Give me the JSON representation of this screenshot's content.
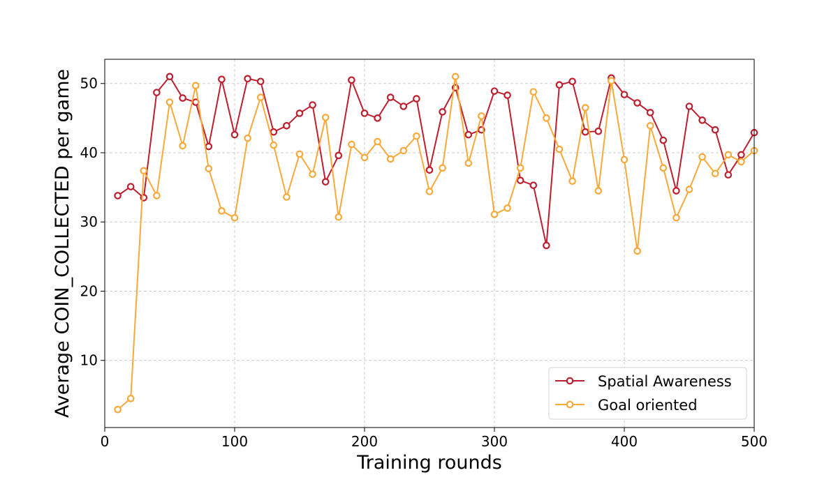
{
  "chart_data": {
    "type": "line",
    "title": "",
    "xlabel": "Training rounds",
    "ylabel": "Average COIN_COLLECTED per game",
    "xlim": [
      0,
      500
    ],
    "ylim": [
      0.3,
      53.5
    ],
    "x_ticks": [
      0,
      100,
      200,
      300,
      400,
      500
    ],
    "y_ticks": [
      10,
      20,
      30,
      40,
      50
    ],
    "grid": true,
    "legend_position": "lower-right",
    "x": [
      10,
      20,
      30,
      40,
      50,
      60,
      70,
      80,
      90,
      100,
      110,
      120,
      130,
      140,
      150,
      160,
      170,
      180,
      190,
      200,
      210,
      220,
      230,
      240,
      250,
      260,
      270,
      280,
      290,
      300,
      310,
      320,
      330,
      340,
      350,
      360,
      370,
      380,
      390,
      400,
      410,
      420,
      430,
      440,
      450,
      460,
      470,
      480,
      490,
      500
    ],
    "series": [
      {
        "name": "Spatial Awareness",
        "color": "#be1e2d",
        "values": [
          33.8,
          35.1,
          33.5,
          48.7,
          51.0,
          47.9,
          47.3,
          40.9,
          50.6,
          42.6,
          50.7,
          50.3,
          43.0,
          43.9,
          45.7,
          46.9,
          35.8,
          39.6,
          50.5,
          45.7,
          45.0,
          48.0,
          46.7,
          47.8,
          37.5,
          45.9,
          49.4,
          42.6,
          43.3,
          48.9,
          48.3,
          36.0,
          35.3,
          26.6,
          49.8,
          50.3,
          43.0,
          43.1,
          50.8,
          48.4,
          47.2,
          45.8,
          41.8,
          34.5,
          46.7,
          44.7,
          43.3,
          36.8,
          39.7,
          42.9
        ]
      },
      {
        "name": "Goal oriented",
        "color": "#f9a93a",
        "values": [
          2.9,
          4.5,
          37.4,
          33.8,
          47.3,
          41.0,
          49.7,
          37.7,
          31.6,
          30.6,
          42.1,
          48.0,
          41.1,
          33.6,
          39.8,
          36.9,
          45.1,
          30.7,
          41.2,
          39.3,
          41.6,
          39.1,
          40.3,
          42.4,
          34.4,
          37.8,
          51.0,
          38.5,
          45.3,
          31.1,
          32.0,
          37.8,
          48.8,
          45.0,
          40.5,
          35.9,
          46.5,
          34.5,
          50.4,
          39.0,
          25.8,
          43.9,
          37.8,
          30.6,
          34.7,
          39.4,
          37.0,
          39.7,
          38.7,
          40.3
        ]
      }
    ]
  }
}
